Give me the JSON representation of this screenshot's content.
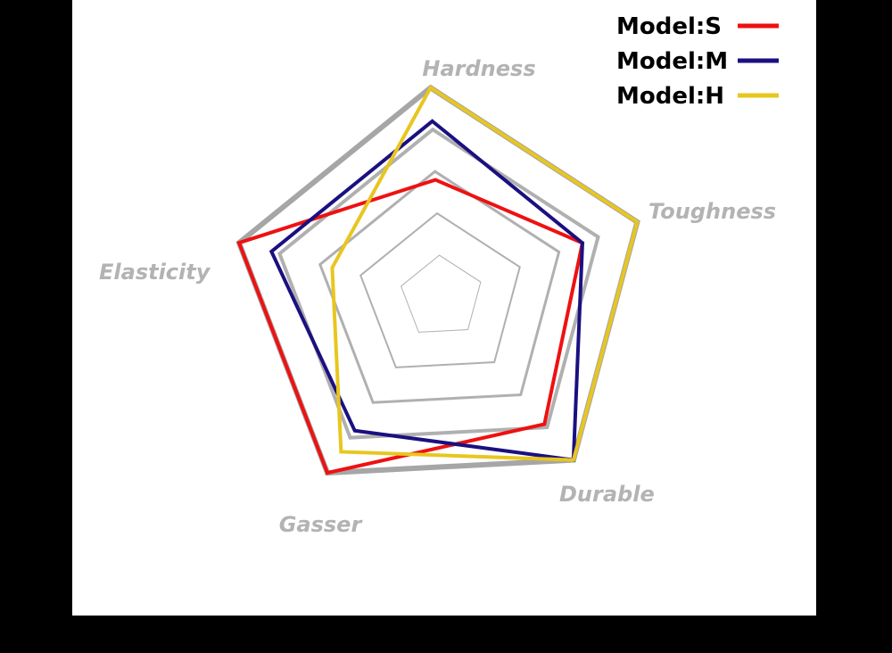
{
  "chart_data": {
    "type": "radar",
    "axes": [
      "Hardness",
      "Toughness",
      "Durable",
      "Gasser",
      "Elasticity"
    ],
    "range": [
      0,
      5
    ],
    "grid_levels": 5,
    "legend_position": "top-right",
    "series": [
      {
        "name": "Model:S",
        "color": "#ee1111",
        "values": [
          2.8,
          3.6,
          3.9,
          5.0,
          5.0
        ]
      },
      {
        "name": "Model:M",
        "color": "#1a1080",
        "values": [
          4.2,
          3.6,
          5.0,
          3.8,
          4.2
        ]
      },
      {
        "name": "Model:H",
        "color": "#e8c61e",
        "values": [
          5.0,
          5.0,
          5.0,
          4.4,
          2.7
        ]
      }
    ]
  }
}
